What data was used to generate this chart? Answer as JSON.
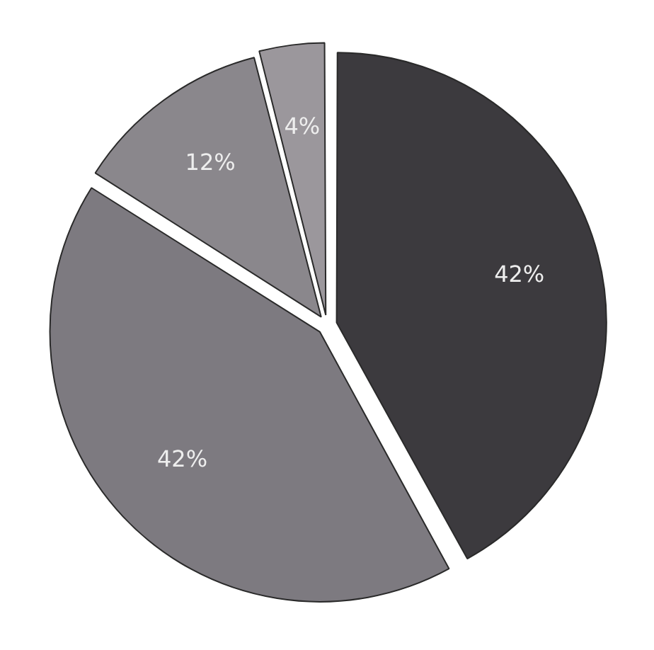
{
  "chart_data": {
    "type": "pie",
    "categories": [
      null,
      null,
      null,
      null
    ],
    "values": [
      42,
      42,
      12,
      4
    ],
    "colors": [
      "#3c3a3e",
      "#7d7a80",
      "#8a878c",
      "#9b979c"
    ],
    "value_labels": [
      "42%",
      "42%",
      "12%",
      "4%"
    ]
  }
}
